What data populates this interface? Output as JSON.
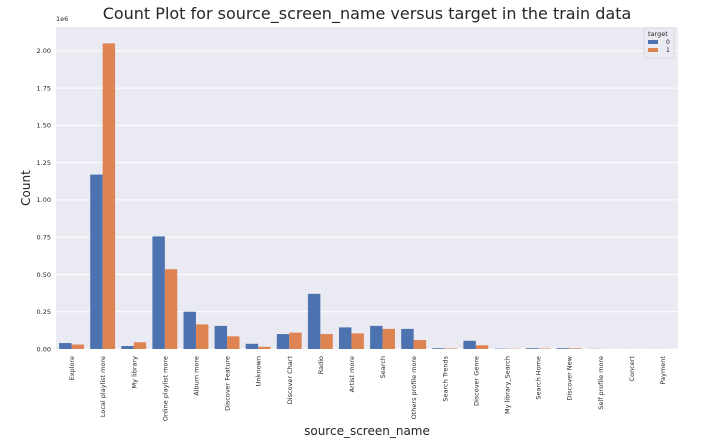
{
  "chart_data": {
    "type": "bar",
    "title": "Count Plot for source_screen_name versus target in the train data",
    "xlabel": "source_screen_name",
    "ylabel": "Count",
    "y_offset_text": "1e6",
    "ylim": [
      0,
      2.16
    ],
    "yticks": [
      0,
      0.25,
      0.5,
      0.75,
      1.0,
      1.25,
      1.5,
      1.75,
      2.0
    ],
    "ytick_labels": [
      "0.00",
      "0.25",
      "0.50",
      "0.75",
      "1.00",
      "1.25",
      "1.50",
      "1.75",
      "2.00"
    ],
    "grid": true,
    "legend_position": "top-right",
    "legend_title": "target",
    "categories": [
      "Explore",
      "Local playlist more",
      "My library",
      "Online playlist more",
      "Album more",
      "Discover Feature",
      "Unknown",
      "Discover Chart",
      "Radio",
      "Artist more",
      "Search",
      "Others profile more",
      "Search Trends",
      "Discover Genre",
      "My library_Search",
      "Search Home",
      "Discover New",
      "Self profile more",
      "Concert",
      "Payment"
    ],
    "series": [
      {
        "name": "0",
        "color": "#4c72b0",
        "values": [
          0.04,
          1.17,
          0.02,
          0.755,
          0.25,
          0.155,
          0.035,
          0.1,
          0.37,
          0.145,
          0.155,
          0.135,
          0.005,
          0.055,
          0.002,
          0.005,
          0.005,
          0.001,
          0.0005,
          0.0005
        ]
      },
      {
        "name": "1",
        "color": "#dd8452",
        "values": [
          0.03,
          2.05,
          0.045,
          0.535,
          0.165,
          0.085,
          0.015,
          0.11,
          0.1,
          0.105,
          0.135,
          0.06,
          0.003,
          0.025,
          0.002,
          0.003,
          0.004,
          0.0008,
          0.0005,
          0.0003
        ]
      }
    ]
  }
}
